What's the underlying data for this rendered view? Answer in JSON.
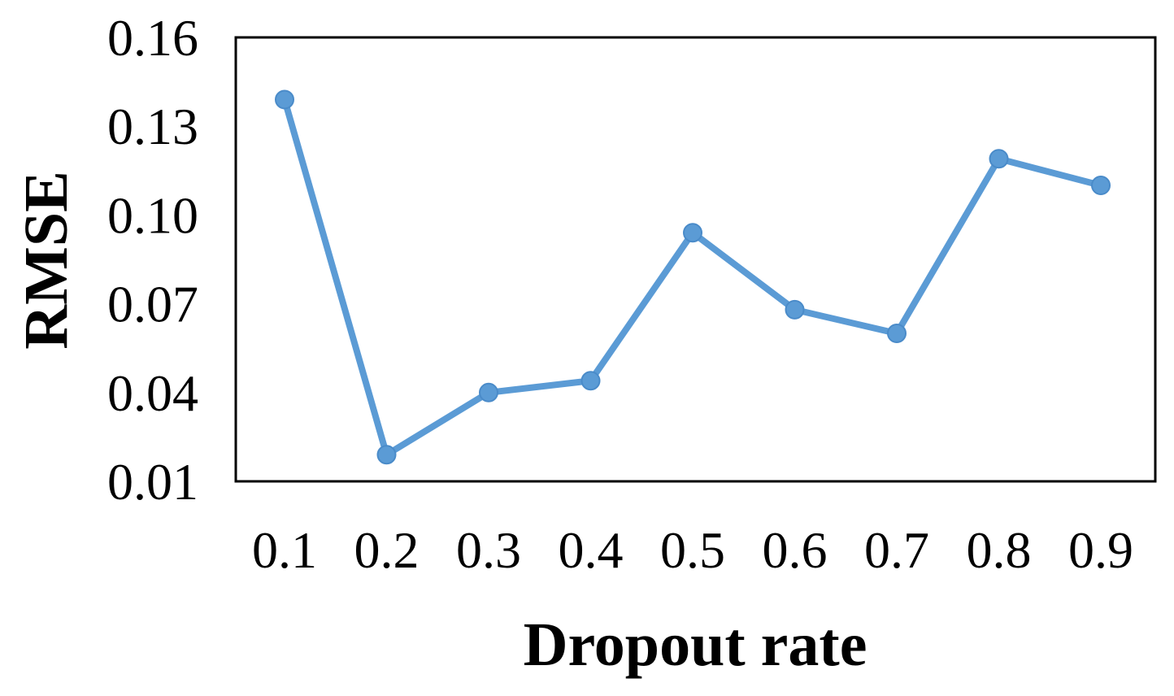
{
  "chart_data": {
    "type": "line",
    "title": "",
    "xlabel": "Dropout rate",
    "ylabel": "RMSE",
    "x": [
      "0.1",
      "0.2",
      "0.3",
      "0.4",
      "0.5",
      "0.6",
      "0.7",
      "0.8",
      "0.9"
    ],
    "series": [
      {
        "values": [
          0.139,
          0.019,
          0.04,
          0.044,
          0.094,
          0.068,
          0.06,
          0.119,
          0.11
        ],
        "color": "#5b9bd5"
      }
    ],
    "ylim": [
      0.01,
      0.16
    ],
    "yticks": [
      "0.01",
      "0.04",
      "0.07",
      "0.10",
      "0.13",
      "0.16"
    ],
    "grid": false,
    "legend": "none",
    "frame_color": "#000000"
  }
}
